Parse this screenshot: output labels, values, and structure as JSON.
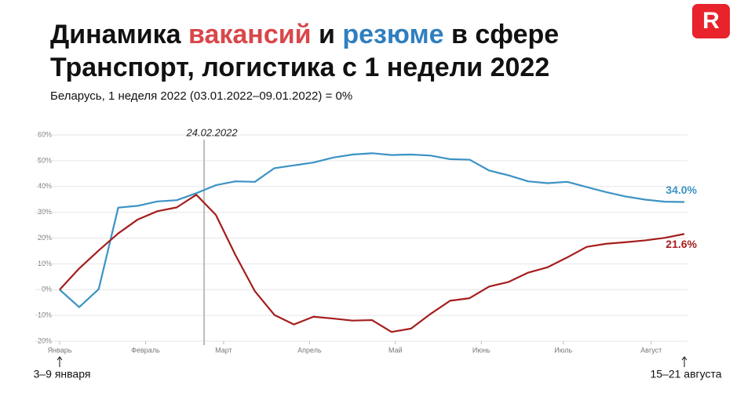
{
  "chart_data": {
    "type": "line",
    "title": [
      [
        "Динамика ",
        "вакансий",
        " и ",
        "резюме",
        " в сфере"
      ],
      [
        "Транспорт, логистика с 1 недели 2022"
      ]
    ],
    "subtitle": "Беларусь, 1 неделя 2022 (03.01.2022–09.01.2022) = 0%",
    "x": [
      1,
      2,
      3,
      4,
      5,
      6,
      7,
      8,
      9,
      10,
      11,
      12,
      13,
      14,
      15,
      16,
      17,
      18,
      19,
      20,
      21,
      22,
      23,
      24,
      25,
      26,
      27,
      28,
      29,
      30,
      31,
      32,
      33
    ],
    "xlim": [
      1,
      33
    ],
    "xticks": [
      {
        "value": 1,
        "label": "Январь"
      },
      {
        "value": 5.4,
        "label": "Февраль"
      },
      {
        "value": 9.4,
        "label": "Март"
      },
      {
        "value": 13.8,
        "label": "Апрель"
      },
      {
        "value": 18.2,
        "label": "Май"
      },
      {
        "value": 22.6,
        "label": "Июнь"
      },
      {
        "value": 26.8,
        "label": "Июль"
      },
      {
        "value": 31.3,
        "label": "Август"
      }
    ],
    "ylim": [
      -20,
      60
    ],
    "yticks": [
      {
        "value": -20,
        "label": "-20%"
      },
      {
        "value": -10,
        "label": "-10%"
      },
      {
        "value": 0,
        "label": "0%"
      },
      {
        "value": 10,
        "label": "10%"
      },
      {
        "value": 20,
        "label": "20%"
      },
      {
        "value": 30,
        "label": "30%"
      },
      {
        "value": 40,
        "label": "40%"
      },
      {
        "value": 50,
        "label": "50%"
      },
      {
        "value": 60,
        "label": "60%"
      }
    ],
    "grid": true,
    "series": [
      {
        "name": "резюме",
        "color": "#3b93c4",
        "values": [
          0,
          -6.8,
          0.2,
          31.8,
          32.5,
          34.2,
          34.7,
          37.4,
          40.5,
          42,
          41.8,
          47.1,
          48.2,
          49.3,
          51.2,
          52.4,
          52.9,
          52.2,
          52.4,
          52,
          50.6,
          50.4,
          46.2,
          44.3,
          42,
          41.3,
          41.8,
          39.8,
          37.8,
          36.1,
          34.9,
          34.1,
          34.0
        ],
        "value_labels": [
          null,
          null,
          null,
          null,
          null,
          null,
          null,
          null,
          null,
          null,
          null,
          null,
          null,
          null,
          null,
          null,
          null,
          null,
          null,
          null,
          null,
          null,
          null,
          null,
          null,
          null,
          null,
          null,
          null,
          null,
          null,
          null,
          "34.0%"
        ]
      },
      {
        "name": "вакансий",
        "color": "#a51d1d",
        "values": [
          0,
          8.2,
          15.2,
          21.8,
          27.2,
          30.4,
          31.9,
          36.8,
          29,
          13.5,
          -0.6,
          -9.8,
          -13.5,
          -10.5,
          -11.2,
          -12,
          -11.8,
          -16.4,
          -15.1,
          -9.4,
          -4.3,
          -3.3,
          1.2,
          3,
          6.6,
          8.7,
          12.5,
          16.6,
          17.8,
          18.4,
          19.1,
          20.1,
          21.6
        ],
        "value_labels": [
          null,
          null,
          null,
          null,
          null,
          null,
          null,
          null,
          null,
          null,
          null,
          null,
          null,
          null,
          null,
          null,
          null,
          null,
          null,
          null,
          null,
          null,
          null,
          null,
          null,
          null,
          null,
          null,
          null,
          null,
          null,
          null,
          "21.6%"
        ]
      }
    ],
    "annotations": [
      {
        "text": "24.02.2022",
        "x": 8.4
      },
      {
        "text": "3–9 января",
        "x": 1
      },
      {
        "text": "15–21 августа",
        "x": 33
      }
    ]
  }
}
